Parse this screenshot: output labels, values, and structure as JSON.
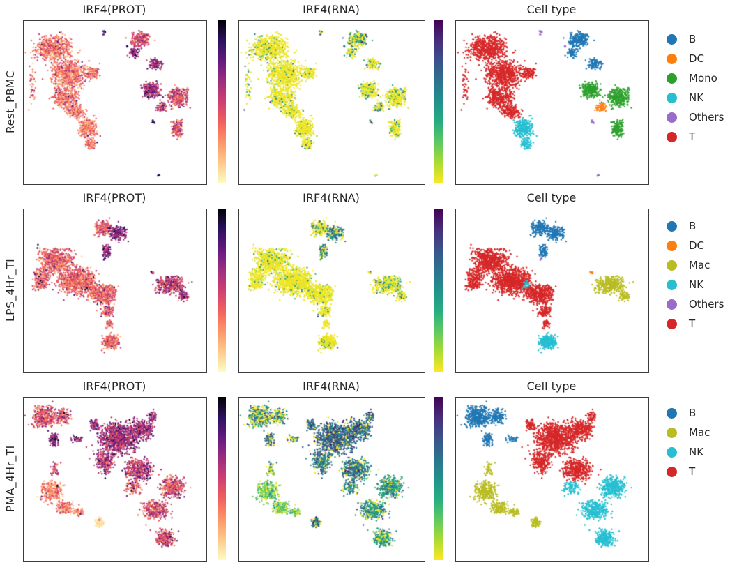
{
  "chart_data": {
    "type": "scatter",
    "title": "",
    "description": "3x3 grid of single-cell UMAP embeddings. Rows are stimulation conditions, columns show IRF4 protein expression (magma-reversed colormap), IRF4 RNA expression (viridis-reversed colormap) and cell-type annotation.",
    "columns": [
      "IRF4(PROT)",
      "IRF4(RNA)",
      "Cell type"
    ],
    "colormaps": {
      "prot": {
        "name": "magma_r",
        "stops": [
          "#fcfdbf",
          "#fec98d",
          "#fd9668",
          "#f1605d",
          "#cd4071",
          "#9c2e7f",
          "#641a80",
          "#2c115f",
          "#000004"
        ]
      },
      "rna": {
        "name": "viridis_r",
        "stops": [
          "#fde725",
          "#aadc32",
          "#5ec962",
          "#27ad81",
          "#21918c",
          "#2c728e",
          "#3b528b",
          "#472d7b",
          "#440154"
        ]
      }
    },
    "cell_type_colors": {
      "B": "#2077b4",
      "DC": "#ff7f0e",
      "Mono": "#2ca02c",
      "Mac": "#b9bd22",
      "NK": "#26bfd1",
      "Others": "#9a6bc9",
      "T": "#d62728"
    },
    "rows": [
      {
        "label": "Rest_PBMC",
        "legend": [
          "B",
          "DC",
          "Mono",
          "NK",
          "Others",
          "T"
        ],
        "clusters": [
          {
            "type": "T",
            "prot": [
              0.33,
              0.2
            ],
            "rna": [
              0.9,
              0.45
            ],
            "blobs": [
              [
                0.16,
                0.17,
                0.115,
                0.085,
                550
              ],
              [
                0.245,
                0.33,
                0.105,
                0.095,
                600
              ],
              [
                0.23,
                0.47,
                0.085,
                0.07,
                300
              ],
              [
                0.285,
                0.555,
                0.055,
                0.05,
                150
              ],
              [
                0.375,
                0.32,
                0.045,
                0.04,
                100
              ],
              [
                0.05,
                0.38,
                0.02,
                0.12,
                40
              ]
            ]
          },
          {
            "type": "NK",
            "prot": [
              0.32,
              0.18
            ],
            "rna": [
              0.88,
              0.45
            ],
            "blobs": [
              [
                0.35,
                0.66,
                0.055,
                0.065,
                280
              ],
              [
                0.365,
                0.755,
                0.03,
                0.04,
                70
              ]
            ]
          },
          {
            "type": "B",
            "prot": [
              0.45,
              0.22
            ],
            "rna": [
              0.55,
              0.5
            ],
            "blobs": [
              [
                0.635,
                0.115,
                0.055,
                0.05,
                230
              ]
            ]
          },
          {
            "type": "B",
            "prot": [
              0.62,
              0.22
            ],
            "rna": [
              0.75,
              0.5
            ],
            "blobs": [
              [
                0.6,
                0.195,
                0.03,
                0.035,
                60
              ],
              [
                0.72,
                0.265,
                0.045,
                0.04,
                90
              ]
            ]
          },
          {
            "type": "Mono",
            "prot": [
              0.62,
              0.2
            ],
            "rna": [
              0.8,
              0.45
            ],
            "blobs": [
              [
                0.7,
                0.42,
                0.055,
                0.05,
                240
              ]
            ]
          },
          {
            "type": "Mono",
            "prot": [
              0.45,
              0.25
            ],
            "rna": [
              0.8,
              0.45
            ],
            "blobs": [
              [
                0.845,
                0.47,
                0.06,
                0.065,
                280
              ],
              [
                0.84,
                0.66,
                0.035,
                0.065,
                120
              ]
            ]
          },
          {
            "type": "DC",
            "prot": [
              0.5,
              0.25
            ],
            "rna": [
              0.7,
              0.5
            ],
            "blobs": [
              [
                0.755,
                0.525,
                0.028,
                0.028,
                55
              ]
            ]
          },
          {
            "type": "Others",
            "prot": [
              0.85,
              0.1
            ],
            "rna": [
              0.5,
              0.6
            ],
            "blobs": [
              [
                0.44,
                0.075,
                0.01,
                0.015,
                8
              ],
              [
                0.565,
                0.155,
                0.008,
                0.01,
                5
              ],
              [
                0.71,
                0.62,
                0.008,
                0.012,
                9
              ],
              [
                0.74,
                0.945,
                0.008,
                0.008,
                5
              ]
            ]
          }
        ]
      },
      {
        "label": "LPS_4Hr_TI",
        "legend": [
          "B",
          "DC",
          "Mac",
          "NK",
          "Others",
          "T"
        ],
        "clusters": [
          {
            "type": "T",
            "prot": [
              0.38,
              0.2
            ],
            "rna": [
              0.9,
              0.4
            ],
            "blobs": [
              [
                0.175,
                0.32,
                0.105,
                0.09,
                650
              ],
              [
                0.29,
                0.44,
                0.115,
                0.09,
                750
              ],
              [
                0.43,
                0.52,
                0.085,
                0.065,
                420
              ],
              [
                0.095,
                0.43,
                0.05,
                0.075,
                200
              ],
              [
                0.46,
                0.625,
                0.04,
                0.035,
                90
              ],
              [
                0.47,
                0.7,
                0.02,
                0.03,
                40
              ]
            ]
          },
          {
            "type": "B",
            "prot": [
              0.42,
              0.2
            ],
            "rna": [
              0.7,
              0.5
            ],
            "blobs": [
              [
                0.435,
                0.115,
                0.05,
                0.055,
                180
              ]
            ]
          },
          {
            "type": "B",
            "prot": [
              0.68,
              0.2
            ],
            "rna": [
              0.3,
              0.55
            ],
            "blobs": [
              [
                0.515,
                0.145,
                0.05,
                0.05,
                200
              ],
              [
                0.455,
                0.255,
                0.025,
                0.045,
                70
              ]
            ]
          },
          {
            "type": "Mac",
            "prot": [
              0.52,
              0.25
            ],
            "rna": [
              0.75,
              0.45
            ],
            "blobs": [
              [
                0.8,
                0.46,
                0.085,
                0.06,
                360
              ],
              [
                0.87,
                0.53,
                0.04,
                0.035,
                60
              ]
            ]
          },
          {
            "type": "NK",
            "prot": [
              0.36,
              0.2
            ],
            "rna": [
              0.85,
              0.45
            ],
            "blobs": [
              [
                0.475,
                0.815,
                0.05,
                0.048,
                260
              ],
              [
                0.365,
                0.46,
                0.02,
                0.03,
                25
              ]
            ]
          },
          {
            "type": "DC",
            "prot": [
              0.5,
              0.2
            ],
            "rna": [
              0.6,
              0.5
            ],
            "blobs": [
              [
                0.705,
                0.385,
                0.012,
                0.012,
                8
              ]
            ]
          },
          {
            "type": "Others",
            "prot": [
              0.8,
              0.1
            ],
            "rna": [
              0.5,
              0.5
            ],
            "blobs": [
              [
                0.445,
                0.305,
                0.01,
                0.015,
                6
              ]
            ]
          }
        ]
      },
      {
        "label": "PMA_4Hr_TI",
        "legend": [
          "B",
          "Mac",
          "NK",
          "T"
        ],
        "clusters": [
          {
            "type": "B",
            "prot": [
              0.42,
              0.25
            ],
            "rna": [
              0.45,
              0.55
            ],
            "blobs": [
              [
                0.115,
                0.115,
                0.075,
                0.07,
                380
              ],
              [
                0.215,
                0.115,
                0.045,
                0.05,
                130
              ]
            ]
          },
          {
            "type": "B",
            "prot": [
              0.68,
              0.2
            ],
            "rna": [
              0.35,
              0.6
            ],
            "blobs": [
              [
                0.165,
                0.255,
                0.028,
                0.05,
                90
              ],
              [
                0.295,
                0.255,
                0.035,
                0.02,
                35
              ]
            ]
          },
          {
            "type": "Mac",
            "prot": [
              0.45,
              0.2
            ],
            "rna": [
              0.4,
              0.45
            ],
            "blobs": [
              [
                0.17,
                0.44,
                0.025,
                0.05,
                50
              ]
            ]
          },
          {
            "type": "Mac",
            "prot": [
              0.3,
              0.2
            ],
            "rna": [
              0.2,
              0.25
            ],
            "blobs": [
              [
                0.155,
                0.575,
                0.065,
                0.08,
                260
              ],
              [
                0.225,
                0.675,
                0.055,
                0.05,
                140
              ],
              [
                0.3,
                0.7,
                0.03,
                0.03,
                50
              ]
            ]
          },
          {
            "type": "Mac",
            "prot": [
              0.07,
              0.05
            ],
            "rna": [
              0.25,
              0.6
            ],
            "blobs": [
              [
                0.415,
                0.765,
                0.028,
                0.035,
                80
              ]
            ]
          },
          {
            "type": "T",
            "prot": [
              0.6,
              0.22
            ],
            "rna": [
              0.12,
              0.68
            ],
            "blobs": [
              [
                0.52,
                0.25,
                0.125,
                0.105,
                850
              ],
              [
                0.645,
                0.195,
                0.075,
                0.065,
                280
              ],
              [
                0.7,
                0.115,
                0.03,
                0.035,
                60
              ],
              [
                0.385,
                0.165,
                0.025,
                0.04,
                70
              ]
            ]
          },
          {
            "type": "T",
            "prot": [
              0.55,
              0.25
            ],
            "rna": [
              0.15,
              0.6
            ],
            "blobs": [
              [
                0.445,
                0.4,
                0.055,
                0.07,
                230
              ],
              [
                0.63,
                0.44,
                0.09,
                0.075,
                380
              ]
            ]
          },
          {
            "type": "NK",
            "prot": [
              0.42,
              0.22
            ],
            "rna": [
              0.2,
              0.5
            ],
            "blobs": [
              [
                0.815,
                0.545,
                0.075,
                0.075,
                330
              ]
            ]
          },
          {
            "type": "NK",
            "prot": [
              0.45,
              0.25
            ],
            "rna": [
              0.2,
              0.5
            ],
            "blobs": [
              [
                0.72,
                0.685,
                0.075,
                0.065,
                290
              ],
              [
                0.6,
                0.55,
                0.05,
                0.05,
                90
              ]
            ]
          },
          {
            "type": "NK",
            "prot": [
              0.48,
              0.25
            ],
            "rna": [
              0.3,
              0.45
            ],
            "blobs": [
              [
                0.775,
                0.86,
                0.055,
                0.06,
                240
              ]
            ]
          }
        ]
      }
    ]
  }
}
